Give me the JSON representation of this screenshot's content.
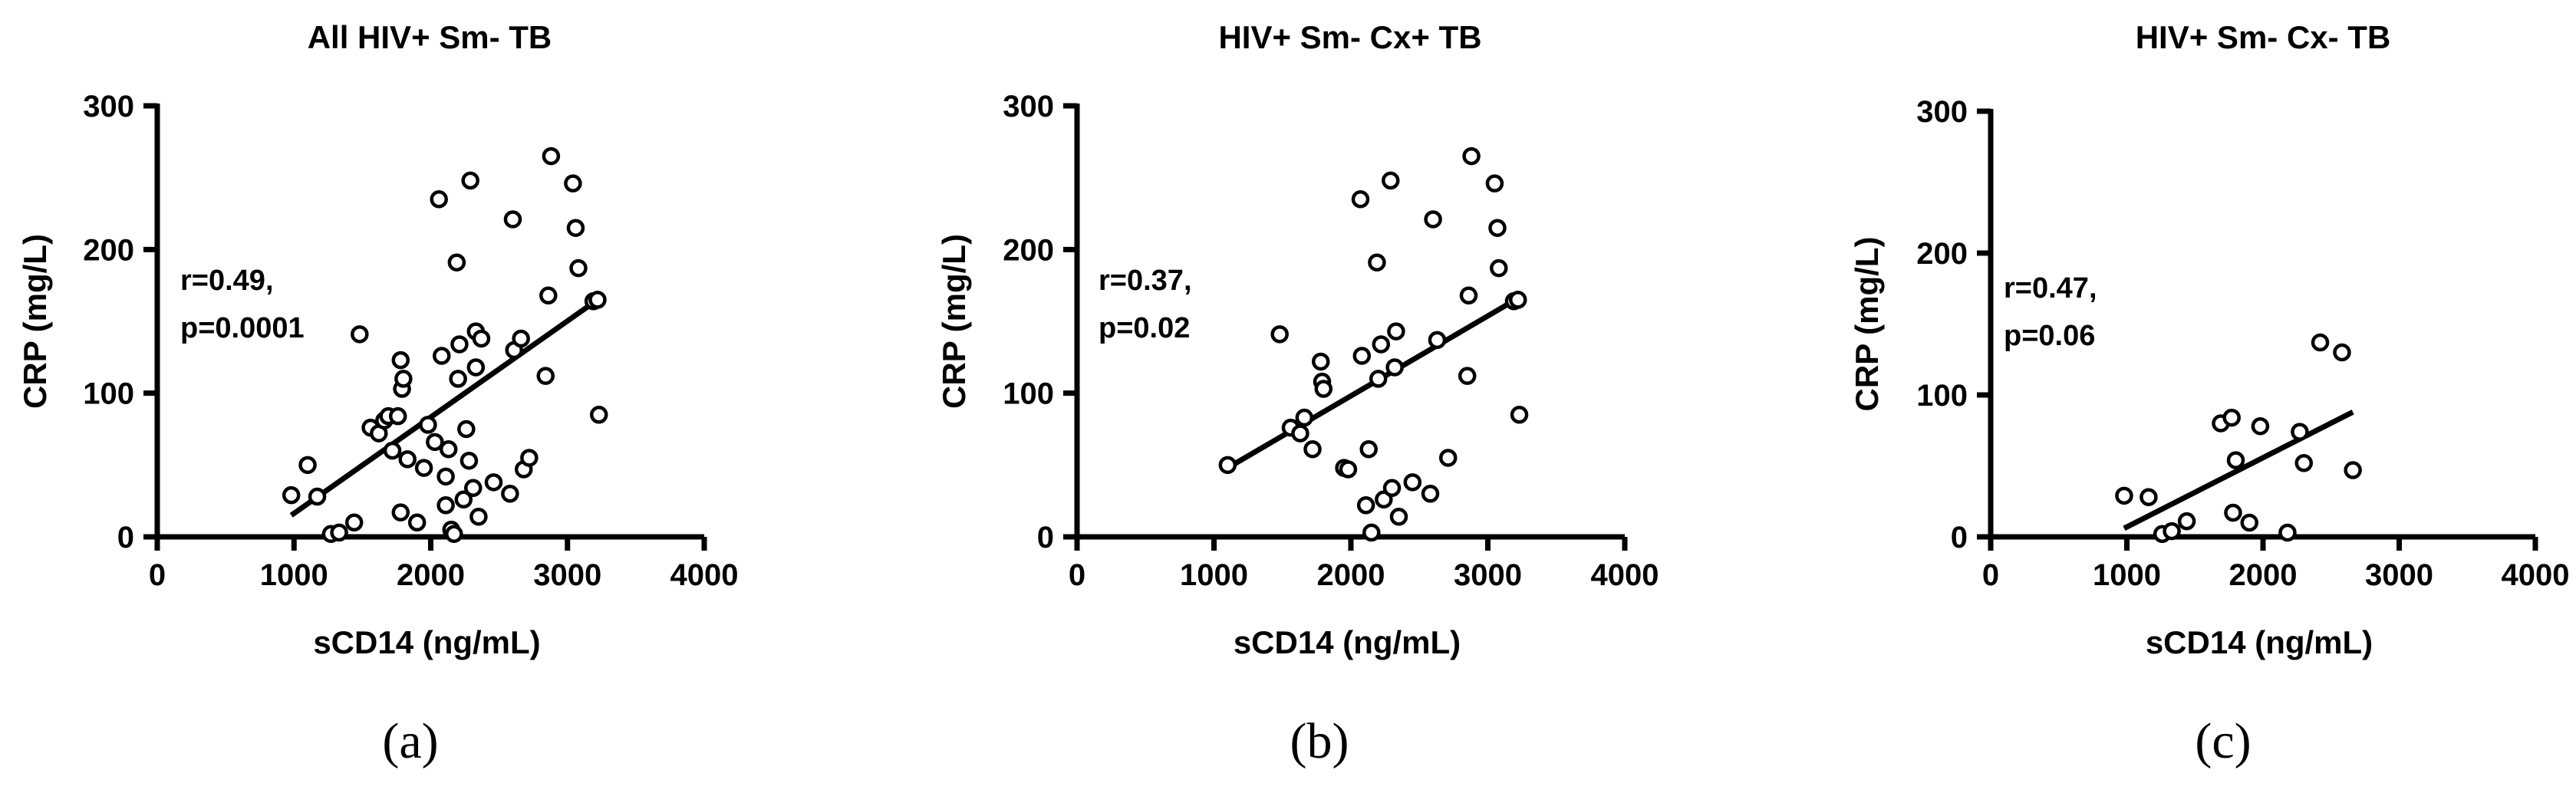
{
  "chart_data": [
    {
      "type": "scatter",
      "panel_label": "(a)",
      "title": "All HIV+ Sm- TB",
      "xlabel": "sCD14 (ng/mL)",
      "ylabel": "CRP (mg/L)",
      "xlim": [
        0,
        4000
      ],
      "ylim": [
        0,
        300
      ],
      "xticks": [
        "0",
        "1000",
        "2000",
        "3000",
        "4000"
      ],
      "yticks": [
        "0",
        "100",
        "200",
        "300"
      ],
      "annotation": [
        "r=0.49,",
        "p=0.0001"
      ],
      "points": [
        [
          980,
          29
        ],
        [
          1100,
          50
        ],
        [
          1170,
          28
        ],
        [
          1270,
          2
        ],
        [
          1330,
          3
        ],
        [
          1440,
          10
        ],
        [
          1480,
          141
        ],
        [
          1560,
          76
        ],
        [
          1620,
          72
        ],
        [
          1660,
          81
        ],
        [
          1690,
          84
        ],
        [
          1720,
          60
        ],
        [
          1760,
          84
        ],
        [
          1780,
          123
        ],
        [
          1790,
          103
        ],
        [
          1800,
          110
        ],
        [
          1780,
          17
        ],
        [
          1830,
          54
        ],
        [
          1900,
          10
        ],
        [
          1950,
          48
        ],
        [
          1980,
          78
        ],
        [
          2030,
          66
        ],
        [
          2060,
          235
        ],
        [
          2080,
          126
        ],
        [
          2110,
          42
        ],
        [
          2110,
          22
        ],
        [
          2130,
          61
        ],
        [
          2150,
          5
        ],
        [
          2170,
          2
        ],
        [
          2190,
          191
        ],
        [
          2200,
          110
        ],
        [
          2210,
          134
        ],
        [
          2240,
          26
        ],
        [
          2260,
          75
        ],
        [
          2280,
          53
        ],
        [
          2290,
          248
        ],
        [
          2310,
          34
        ],
        [
          2330,
          118
        ],
        [
          2330,
          143
        ],
        [
          2350,
          14
        ],
        [
          2370,
          138
        ],
        [
          2460,
          38
        ],
        [
          2580,
          30
        ],
        [
          2600,
          221
        ],
        [
          2610,
          130
        ],
        [
          2660,
          138
        ],
        [
          2680,
          47
        ],
        [
          2720,
          55
        ],
        [
          2840,
          112
        ],
        [
          2860,
          168
        ],
        [
          2880,
          265
        ],
        [
          3040,
          246
        ],
        [
          3060,
          215
        ],
        [
          3080,
          187
        ],
        [
          3190,
          164
        ],
        [
          3220,
          165
        ],
        [
          3230,
          85
        ]
      ],
      "fit": {
        "x": [
          980,
          3220
        ],
        "y": [
          15,
          165
        ]
      }
    },
    {
      "type": "scatter",
      "panel_label": "(b)",
      "title": "HIV+ Sm- Cx+ TB",
      "xlabel": "sCD14 (ng/mL)",
      "ylabel": "CRP (mg/L)",
      "xlim": [
        0,
        4000
      ],
      "ylim": [
        0,
        300
      ],
      "xticks": [
        "0",
        "1000",
        "2000",
        "3000",
        "4000"
      ],
      "yticks": [
        "0",
        "100",
        "200",
        "300"
      ],
      "annotation": [
        "r=0.37,",
        "p=0.02"
      ],
      "points": [
        [
          1100,
          50
        ],
        [
          1480,
          141
        ],
        [
          1560,
          76
        ],
        [
          1630,
          72
        ],
        [
          1660,
          83
        ],
        [
          1720,
          61
        ],
        [
          1780,
          122
        ],
        [
          1790,
          108
        ],
        [
          1800,
          103
        ],
        [
          1950,
          48
        ],
        [
          1980,
          47
        ],
        [
          2070,
          235
        ],
        [
          2080,
          126
        ],
        [
          2110,
          22
        ],
        [
          2130,
          61
        ],
        [
          2150,
          3
        ],
        [
          2190,
          191
        ],
        [
          2200,
          110
        ],
        [
          2220,
          134
        ],
        [
          2240,
          26
        ],
        [
          2290,
          248
        ],
        [
          2300,
          34
        ],
        [
          2320,
          118
        ],
        [
          2330,
          143
        ],
        [
          2350,
          14
        ],
        [
          2450,
          38
        ],
        [
          2580,
          30
        ],
        [
          2600,
          221
        ],
        [
          2630,
          137
        ],
        [
          2710,
          55
        ],
        [
          2850,
          112
        ],
        [
          2860,
          168
        ],
        [
          2880,
          265
        ],
        [
          3050,
          246
        ],
        [
          3070,
          215
        ],
        [
          3080,
          187
        ],
        [
          3190,
          164
        ],
        [
          3220,
          165
        ],
        [
          3230,
          85
        ]
      ],
      "fit": {
        "x": [
          1100,
          3220
        ],
        "y": [
          48,
          166
        ]
      }
    },
    {
      "type": "scatter",
      "panel_label": "(c)",
      "title": "HIV+ Sm- Cx- TB",
      "xlabel": "sCD14 (ng/mL)",
      "ylabel": "CRP (mg/L)",
      "xlim": [
        0,
        4000
      ],
      "ylim": [
        0,
        300
      ],
      "xticks": [
        "0",
        "1000",
        "2000",
        "3000",
        "4000"
      ],
      "yticks": [
        "0",
        "100",
        "200",
        "300"
      ],
      "annotation": [
        "r=0.47,",
        "p=0.06"
      ],
      "points": [
        [
          980,
          29
        ],
        [
          1160,
          28
        ],
        [
          1260,
          2
        ],
        [
          1330,
          4
        ],
        [
          1440,
          11
        ],
        [
          1690,
          80
        ],
        [
          1770,
          84
        ],
        [
          1780,
          17
        ],
        [
          1800,
          54
        ],
        [
          1900,
          10
        ],
        [
          1980,
          78
        ],
        [
          2180,
          3
        ],
        [
          2270,
          74
        ],
        [
          2300,
          52
        ],
        [
          2420,
          137
        ],
        [
          2580,
          130
        ],
        [
          2660,
          47
        ]
      ],
      "fit": {
        "x": [
          980,
          2660
        ],
        "y": [
          6,
          88
        ]
      }
    }
  ]
}
